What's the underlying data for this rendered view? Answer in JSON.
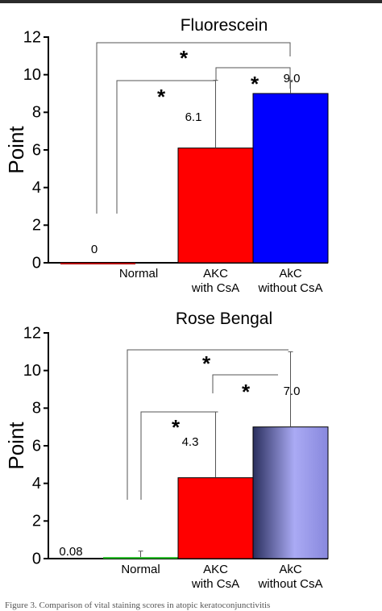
{
  "chart_data": [
    {
      "type": "bar",
      "title": "Fluorescein",
      "ylabel": "Point",
      "xlabel": "",
      "ylim": [
        0,
        12
      ],
      "yticks": [
        "0",
        "2",
        "4",
        "6",
        "8",
        "10",
        "12"
      ],
      "categories": [
        [
          "Normal"
        ],
        [
          "AKC",
          "with CsA"
        ],
        [
          "AkC",
          "without CsA"
        ]
      ],
      "values": [
        0,
        6.1,
        9.0
      ],
      "value_labels": [
        "0",
        "6.1",
        "9.0"
      ],
      "error_upper": [
        0,
        9.7,
        9.7
      ],
      "colors": [
        "#b00000",
        "#ff0000",
        "#0000ff"
      ],
      "significance": [
        {
          "from": 0,
          "to": 2,
          "label": "*"
        },
        {
          "from": 0,
          "to": 1,
          "label": "*"
        },
        {
          "from": 1,
          "to": 2,
          "label": "*"
        }
      ]
    },
    {
      "type": "bar",
      "title": "Rose Bengal",
      "ylabel": "Point",
      "xlabel": "",
      "ylim": [
        0,
        12
      ],
      "yticks": [
        "0",
        "2",
        "4",
        "6",
        "8",
        "10",
        "12"
      ],
      "categories": [
        [
          "Normal"
        ],
        [
          "AKC",
          "with CsA"
        ],
        [
          "AkC",
          "without CsA"
        ]
      ],
      "values": [
        0.08,
        4.3,
        7.0
      ],
      "value_labels": [
        "0.08",
        "4.3",
        "7.0"
      ],
      "error_upper": [
        0.4,
        7.8,
        11.0
      ],
      "colors": [
        "#22bb22",
        "#ff0000",
        "#9999ee"
      ],
      "significance": [
        {
          "from": 0,
          "to": 2,
          "label": "*"
        },
        {
          "from": 0,
          "to": 1,
          "label": "*"
        },
        {
          "from": 1,
          "to": 2,
          "label": "*"
        }
      ]
    }
  ],
  "caption": "Figure 3. Comparison of vital staining scores in atopic keratoconjunctivitis"
}
